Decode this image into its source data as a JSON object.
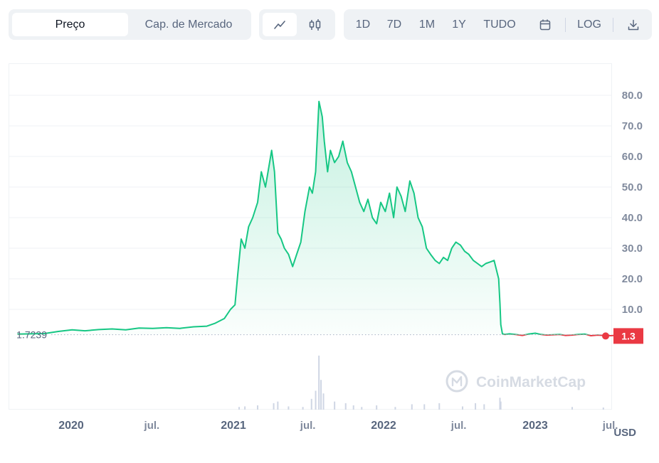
{
  "toolbar": {
    "type_tabs": [
      "Preço",
      "Cap. de Mercado"
    ],
    "range_buttons": [
      "1D",
      "7D",
      "1M",
      "1Y",
      "TUDO"
    ],
    "log_label": "LOG"
  },
  "icons": {
    "line_chart": "line-chart-icon",
    "candlestick": "candlestick-icon",
    "calendar": "calendar-icon",
    "download": "download-icon"
  },
  "watermark": "CoinMarketCap",
  "colors": {
    "up": "#16c784",
    "down": "#ea3943",
    "label_bg": "#ea3943",
    "volume": "#cfd6e4"
  },
  "chart_data": {
    "type": "line",
    "x_tick_labels": [
      "2020",
      "jul.",
      "2021",
      "jul.",
      "2022",
      "jul.",
      "2023",
      "jul."
    ],
    "x_tick_dates": [
      "2020-01-01",
      "2020-07-01",
      "2021-01-01",
      "2021-07-01",
      "2022-01-01",
      "2022-07-01",
      "2023-01-01",
      "2023-07-01"
    ],
    "y_ticks": [
      10,
      20,
      30,
      40,
      50,
      60,
      70,
      80
    ],
    "y_tick_labels": [
      "10.0",
      "20.0",
      "30.0",
      "40.0",
      "50.0",
      "60.0",
      "70.0",
      "80.0"
    ],
    "y_range": [
      0,
      90
    ],
    "y_unit_label": "USD",
    "reference_value": 1.7239,
    "reference_label": "1.7239",
    "current_value_label": "1.3",
    "current_value": 1.3,
    "series": [
      {
        "x": [
          "2019-10-01",
          "2019-11-01",
          "2019-12-01",
          "2020-01-01",
          "2020-02-01",
          "2020-03-01",
          "2020-04-01",
          "2020-05-01",
          "2020-06-01",
          "2020-07-01",
          "2020-08-01",
          "2020-09-01",
          "2020-10-01",
          "2020-11-01",
          "2020-12-01",
          "2020-12-20",
          "2021-01-10",
          "2021-01-25",
          "2021-02-05",
          "2021-02-12",
          "2021-02-20",
          "2021-03-01",
          "2021-03-10",
          "2021-03-20",
          "2021-04-01",
          "2021-04-10",
          "2021-04-20",
          "2021-05-05",
          "2021-05-12",
          "2021-05-20",
          "2021-05-28",
          "2021-06-05",
          "2021-06-15",
          "2021-06-25",
          "2021-07-05",
          "2021-07-15",
          "2021-07-25",
          "2021-08-05",
          "2021-08-12",
          "2021-08-20",
          "2021-08-28",
          "2021-09-05",
          "2021-09-10",
          "2021-09-18",
          "2021-09-25",
          "2021-10-05",
          "2021-10-15",
          "2021-10-25",
          "2021-11-05",
          "2021-11-15",
          "2021-11-25",
          "2021-12-05",
          "2021-12-15",
          "2021-12-25",
          "2022-01-05",
          "2022-01-15",
          "2022-01-25",
          "2022-02-05",
          "2022-02-15",
          "2022-02-25",
          "2022-03-05",
          "2022-03-15",
          "2022-03-25",
          "2022-04-05",
          "2022-04-15",
          "2022-04-25",
          "2022-05-05",
          "2022-05-15",
          "2022-05-25",
          "2022-06-05",
          "2022-06-15",
          "2022-06-25",
          "2022-07-05",
          "2022-07-15",
          "2022-07-25",
          "2022-08-05",
          "2022-08-15",
          "2022-08-25",
          "2022-09-05",
          "2022-09-15",
          "2022-09-25",
          "2022-10-05",
          "2022-10-15",
          "2022-10-25",
          "2022-11-05",
          "2022-11-08",
          "2022-11-10",
          "2022-11-14",
          "2022-11-20",
          "2022-12-01",
          "2022-12-15",
          "2023-01-01",
          "2023-01-15",
          "2023-02-01",
          "2023-02-15",
          "2023-03-01",
          "2023-03-15",
          "2023-04-01",
          "2023-04-15",
          "2023-05-01",
          "2023-05-15",
          "2023-06-01",
          "2023-06-15",
          "2023-07-01",
          "2023-07-15",
          "2023-08-01",
          "2023-08-10",
          "2023-08-20"
        ],
        "y": [
          1.9,
          2.0,
          2.1,
          2.8,
          3.3,
          3.0,
          3.4,
          3.6,
          3.3,
          3.9,
          3.8,
          4.0,
          3.8,
          4.3,
          4.5,
          5.5,
          7.0,
          10.0,
          11.5,
          22.0,
          33.0,
          30.0,
          37.0,
          40.0,
          45.0,
          55.0,
          50.0,
          62.0,
          55.0,
          35.0,
          33.0,
          30.0,
          28.0,
          24.0,
          28.0,
          32.0,
          42.0,
          50.0,
          48.0,
          55.0,
          78.0,
          73.0,
          65.0,
          55.0,
          62.0,
          58.0,
          60.0,
          65.0,
          58.0,
          55.0,
          50.0,
          45.0,
          42.0,
          46.0,
          40.0,
          38.0,
          45.0,
          42.0,
          48.0,
          40.0,
          50.0,
          47.0,
          42.0,
          52.0,
          48.0,
          40.0,
          37.0,
          30.0,
          28.0,
          26.0,
          25.0,
          27.0,
          26.0,
          30.0,
          32.0,
          31.0,
          29.0,
          28.0,
          26.0,
          25.0,
          24.0,
          25.0,
          25.5,
          26.0,
          20.0,
          12.0,
          5.0,
          2.0,
          1.8,
          2.0,
          1.8,
          1.5,
          1.9,
          2.2,
          1.8,
          1.6,
          1.7,
          1.8,
          1.5,
          1.6,
          1.8,
          1.9,
          1.4,
          1.6,
          1.5,
          1.4,
          1.5,
          1.3
        ]
      }
    ],
    "volume_relative": [
      [
        "2021-02-15",
        0.05
      ],
      [
        "2021-03-01",
        0.06
      ],
      [
        "2021-04-01",
        0.08
      ],
      [
        "2021-05-10",
        0.12
      ],
      [
        "2021-05-20",
        0.15
      ],
      [
        "2021-06-15",
        0.06
      ],
      [
        "2021-07-20",
        0.05
      ],
      [
        "2021-08-10",
        0.2
      ],
      [
        "2021-08-20",
        0.35
      ],
      [
        "2021-08-28",
        1.0
      ],
      [
        "2021-09-02",
        0.55
      ],
      [
        "2021-09-08",
        0.3
      ],
      [
        "2021-10-05",
        0.15
      ],
      [
        "2021-11-01",
        0.12
      ],
      [
        "2021-11-20",
        0.08
      ],
      [
        "2021-12-10",
        0.05
      ],
      [
        "2022-01-15",
        0.08
      ],
      [
        "2022-03-01",
        0.05
      ],
      [
        "2022-04-10",
        0.1
      ],
      [
        "2022-05-10",
        0.1
      ],
      [
        "2022-06-15",
        0.12
      ],
      [
        "2022-08-10",
        0.06
      ],
      [
        "2022-09-10",
        0.12
      ],
      [
        "2022-10-01",
        0.1
      ],
      [
        "2022-11-08",
        0.22
      ],
      [
        "2022-11-10",
        0.15
      ],
      [
        "2023-05-01",
        0.05
      ],
      [
        "2023-07-15",
        0.04
      ]
    ]
  }
}
